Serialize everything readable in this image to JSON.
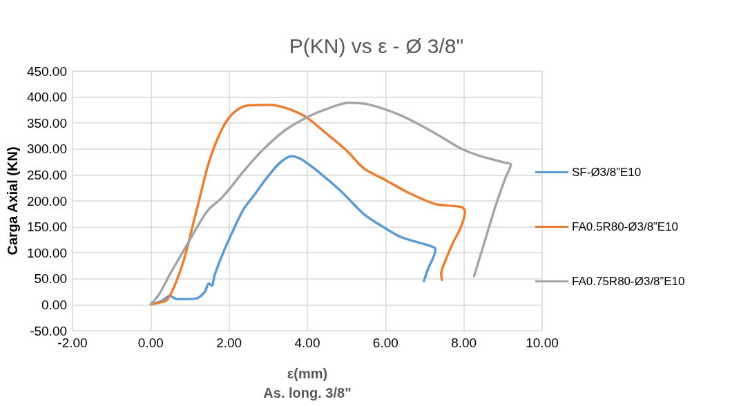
{
  "chart_data": {
    "type": "line",
    "title": "P(KN) vs ε - Ø 3/8\"",
    "xlabel": "ε(mm)\nAs. long. 3/8\"",
    "ylabel": "Carga Axial (KN)",
    "xlim": [
      -2,
      10
    ],
    "xticks": [
      {
        "value": -2,
        "label": "-2.00"
      },
      {
        "value": 0,
        "label": "0.00"
      },
      {
        "value": 2,
        "label": "2.00"
      },
      {
        "value": 4,
        "label": "4.00"
      },
      {
        "value": 6,
        "label": "6.00"
      },
      {
        "value": 8,
        "label": "8.00"
      },
      {
        "value": 10,
        "label": "10.00"
      }
    ],
    "ylim": [
      -50,
      450
    ],
    "yticks": [
      {
        "value": -50,
        "label": "-50.00"
      },
      {
        "value": 0,
        "label": "0.00"
      },
      {
        "value": 50,
        "label": "50.00"
      },
      {
        "value": 100,
        "label": "100.00"
      },
      {
        "value": 150,
        "label": "150.00"
      },
      {
        "value": 200,
        "label": "200.00"
      },
      {
        "value": 250,
        "label": "250.00"
      },
      {
        "value": 300,
        "label": "300.00"
      },
      {
        "value": 350,
        "label": "350.00"
      },
      {
        "value": 400,
        "label": "400.00"
      },
      {
        "value": 450,
        "label": "450.00"
      }
    ],
    "grid": true,
    "legend": "right",
    "marker": "none",
    "line_style": "solid",
    "series": [
      {
        "name": "SF-Ø3/8”E10",
        "color": "#5b9bd5",
        "x": [
          0,
          0.27,
          0.49,
          0.66,
          0.89,
          1.16,
          1.38,
          1.48,
          1.56,
          1.63,
          1.86,
          2.09,
          2.37,
          2.65,
          2.94,
          3.28,
          3.59,
          3.85,
          4.3,
          4.87,
          5.44,
          6.0,
          6.41,
          7.15,
          7.27,
          7.24,
          7.09,
          6.98
        ],
        "values": [
          1,
          7,
          17,
          11,
          11,
          12,
          25,
          41,
          37,
          57,
          102,
          141,
          184,
          212,
          242,
          272,
          286,
          280,
          255,
          218,
          175,
          147,
          130,
          113,
          108,
          95,
          70,
          46
        ]
      },
      {
        "name": "FA0.5R80-Ø3/8”E10",
        "color": "#ed7d31",
        "x": [
          0,
          0.21,
          0.41,
          0.61,
          0.84,
          1.06,
          1.26,
          1.46,
          1.69,
          1.94,
          2.2,
          2.48,
          3.05,
          3.45,
          3.96,
          4.42,
          4.99,
          5.44,
          6.0,
          6.58,
          7.27,
          7.95,
          8.03,
          7.92,
          7.72,
          7.55,
          7.42,
          7.44
        ],
        "values": [
          1,
          4,
          9,
          37,
          85,
          149,
          209,
          268,
          317,
          354,
          375,
          384,
          385,
          379,
          362,
          334,
          298,
          263,
          240,
          216,
          194,
          188,
          179,
          149,
          119,
          89,
          59,
          48
        ]
      },
      {
        "name": "FA0.75R80-Ø3/8”E10",
        "color": "#a5a5a5",
        "x": [
          0,
          0.21,
          0.49,
          0.89,
          1.18,
          1.46,
          1.8,
          2.03,
          2.37,
          2.82,
          3.39,
          3.96,
          4.42,
          5.07,
          5.56,
          6.41,
          7.27,
          7.95,
          8.4,
          9.03,
          9.2,
          9.06,
          8.8,
          8.52,
          8.26
        ],
        "values": [
          1,
          20,
          59,
          111,
          149,
          182,
          205,
          225,
          257,
          295,
          334,
          360,
          375,
          389,
          386,
          364,
          330,
          300,
          287,
          274,
          270,
          244,
          188,
          119,
          55
        ]
      }
    ]
  }
}
